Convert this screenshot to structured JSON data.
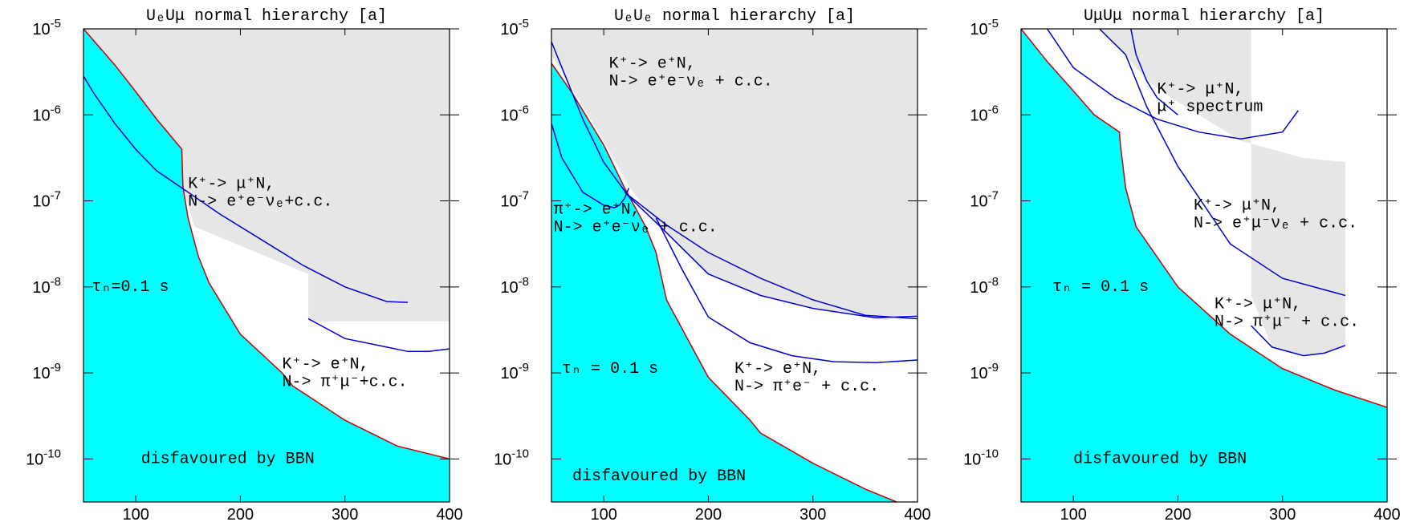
{
  "colors": {
    "bbn_fill": "#00ffff",
    "excluded_fill": "#e6e6e6",
    "bbn_boundary": "#d00000",
    "limit_curve": "#0000d0"
  },
  "chart_data": [
    {
      "type": "area",
      "title": "UₑUμ normal hierarchy [a]",
      "xlabel": "",
      "ylabel": "",
      "xlim": [
        50,
        400
      ],
      "ylim_log10": [
        -10.5,
        -5
      ],
      "yscale": "log",
      "x_ticks": [
        "100",
        "200",
        "300",
        "400"
      ],
      "y_ticks": [
        {
          "base": "10",
          "exp": "-5"
        },
        {
          "base": "10",
          "exp": "-6"
        },
        {
          "base": "10",
          "exp": "-7"
        },
        {
          "base": "10",
          "exp": "-8"
        },
        {
          "base": "10",
          "exp": "-9"
        },
        {
          "base": "10",
          "exp": "-10"
        }
      ],
      "grid": false,
      "regions": [
        {
          "name": "disfavoured by BBN",
          "x": [
            50,
            80,
            100,
            120,
            144,
            145,
            150,
            160,
            170,
            200,
            240,
            250,
            300,
            350,
            400
          ],
          "y_log10": [
            -5,
            -5.42,
            -5.73,
            -6.05,
            -6.4,
            -6.83,
            -7.2,
            -7.65,
            -7.95,
            -8.55,
            -9.0,
            -9.15,
            -9.55,
            -9.85,
            -10.0
          ]
        }
      ],
      "excluded_region": {
        "name": "excluded",
        "upper_log10": -5,
        "lower": [
          {
            "x": 50,
            "y_log10": -5
          },
          {
            "x": 144,
            "y_log10": -6.4
          },
          {
            "x": 145,
            "y_log10": -6.83
          },
          {
            "x": 156,
            "y_log10": -7.3
          },
          {
            "x": 265,
            "y_log10": -7.85
          },
          {
            "x": 265,
            "y_log10": -8.4
          },
          {
            "x": 400,
            "y_log10": -8.4
          }
        ]
      },
      "series": [
        {
          "x": [
            50,
            60,
            80,
            100,
            120,
            150,
            180,
            220,
            260,
            300,
            340,
            360
          ],
          "y_log10": [
            -5.55,
            -5.75,
            -6.1,
            -6.4,
            -6.65,
            -6.9,
            -7.15,
            -7.45,
            -7.75,
            -8.0,
            -8.17,
            -8.18
          ]
        },
        {
          "x": [
            265,
            300,
            340,
            360,
            380,
            400
          ],
          "y_log10": [
            -8.37,
            -8.6,
            -8.7,
            -8.75,
            -8.75,
            -8.72
          ]
        }
      ],
      "annotations": [
        {
          "x": 150,
          "y_log10": -6.85,
          "lines": [
            "K⁺-> μ⁺N,",
            "N-> e⁺e⁻νₑ+c.c."
          ]
        },
        {
          "x": 58,
          "y_log10": -8.05,
          "lines": [
            "τₙ=0.1 s"
          ]
        },
        {
          "x": 240,
          "y_log10": -8.95,
          "lines": [
            "K⁺-> e⁺N,",
            "N-> π⁺μ⁻+c.c."
          ]
        },
        {
          "x": 105,
          "y_log10": -10.05,
          "lines": [
            "disfavoured by BBN"
          ]
        }
      ]
    },
    {
      "type": "area",
      "title": "UₑUₑ normal hierarchy [a]",
      "xlabel": "",
      "ylabel": "",
      "xlim": [
        50,
        400
      ],
      "ylim_log10": [
        -10.5,
        -5
      ],
      "yscale": "log",
      "x_ticks": [
        "100",
        "200",
        "300",
        "400"
      ],
      "y_ticks": [
        {
          "base": "10",
          "exp": "-5"
        },
        {
          "base": "10",
          "exp": "-6"
        },
        {
          "base": "10",
          "exp": "-7"
        },
        {
          "base": "10",
          "exp": "-8"
        },
        {
          "base": "10",
          "exp": "-9"
        },
        {
          "base": "10",
          "exp": "-10"
        }
      ],
      "grid": false,
      "regions": [
        {
          "name": "disfavoured by BBN",
          "x": [
            50,
            70,
            100,
            120,
            140,
            150,
            160,
            200,
            240,
            250,
            300,
            350,
            380
          ],
          "y_log10": [
            -5.4,
            -5.75,
            -6.35,
            -6.85,
            -7.3,
            -7.6,
            -8.15,
            -9.05,
            -9.55,
            -9.7,
            -10.05,
            -10.35,
            -10.5
          ]
        }
      ],
      "excluded_region": {
        "name": "excluded",
        "upper_log10": -5,
        "lower": [
          {
            "x": 50,
            "y_log10": -5.3
          },
          {
            "x": 100,
            "y_log10": -6.3
          },
          {
            "x": 124,
            "y_log10": -6.83
          },
          {
            "x": 150,
            "y_log10": -7.25
          },
          {
            "x": 200,
            "y_log10": -7.85
          },
          {
            "x": 250,
            "y_log10": -8.1
          },
          {
            "x": 300,
            "y_log10": -8.25
          },
          {
            "x": 360,
            "y_log10": -8.35
          },
          {
            "x": 400,
            "y_log10": -8.32
          }
        ]
      },
      "series": [
        {
          "x": [
            50,
            60,
            70,
            80,
            100,
            124,
            150,
            200,
            250,
            300,
            360,
            400
          ],
          "y_log10": [
            -5.15,
            -5.45,
            -5.75,
            -6.05,
            -6.55,
            -6.95,
            -7.25,
            -7.85,
            -8.1,
            -8.25,
            -8.36,
            -8.34
          ]
        },
        {
          "x": [
            50,
            60,
            80,
            100,
            110,
            115,
            120,
            124
          ],
          "y_log10": [
            -6.1,
            -6.5,
            -6.9,
            -7.05,
            -7.08,
            -7.05,
            -6.97,
            -6.85
          ]
        },
        {
          "x": [
            120,
            160,
            200,
            250,
            300,
            350,
            400
          ],
          "y_log10": [
            -6.9,
            -7.28,
            -7.6,
            -7.9,
            -8.15,
            -8.33,
            -8.37
          ]
        },
        {
          "x": [
            150,
            175,
            200,
            240,
            280,
            320,
            360,
            400
          ],
          "y_log10": [
            -7.2,
            -7.8,
            -8.35,
            -8.65,
            -8.8,
            -8.87,
            -8.88,
            -8.85
          ]
        }
      ],
      "annotations": [
        {
          "x": 105,
          "y_log10": -5.45,
          "lines": [
            "K⁺-> e⁺N,",
            "N-> e⁺e⁻νₑ + c.c."
          ]
        },
        {
          "x": 52,
          "y_log10": -7.15,
          "lines": [
            "π⁺-> e⁺N,",
            "N-> e⁺e⁻νₑ + c.c."
          ]
        },
        {
          "x": 60,
          "y_log10": -9.0,
          "lines": [
            "τₙ = 0.1 s"
          ]
        },
        {
          "x": 225,
          "y_log10": -9.0,
          "lines": [
            "K⁺-> e⁺N,",
            "N-> π⁺e⁻ + c.c."
          ]
        },
        {
          "x": 70,
          "y_log10": -10.25,
          "lines": [
            "disfavoured by BBN"
          ]
        }
      ]
    },
    {
      "type": "area",
      "title": "UμUμ normal hierarchy [a]",
      "xlabel": "",
      "ylabel": "",
      "xlim": [
        50,
        400
      ],
      "ylim_log10": [
        -10.5,
        -5
      ],
      "yscale": "log",
      "x_ticks": [
        "100",
        "200",
        "300",
        "400"
      ],
      "y_ticks": [
        {
          "base": "10",
          "exp": "-5"
        },
        {
          "base": "10",
          "exp": "-6"
        },
        {
          "base": "10",
          "exp": "-7"
        },
        {
          "base": "10",
          "exp": "-8"
        },
        {
          "base": "10",
          "exp": "-9"
        },
        {
          "base": "10",
          "exp": "-10"
        }
      ],
      "grid": false,
      "regions": [
        {
          "name": "disfavoured by BBN",
          "x": [
            50,
            75,
            100,
            120,
            144,
            145,
            150,
            160,
            200,
            250,
            300,
            350,
            400
          ],
          "y_log10": [
            -5,
            -5.38,
            -5.72,
            -6.0,
            -6.2,
            -6.35,
            -6.85,
            -7.3,
            -8.0,
            -8.55,
            -8.95,
            -9.2,
            -9.4
          ]
        }
      ],
      "excluded_region": {
        "name": "excluded",
        "upper_log10": -5,
        "lower": [
          {
            "x": 125,
            "y_log10": -5
          },
          {
            "x": 150,
            "y_log10": -5.3
          },
          {
            "x": 170,
            "y_log10": -5.6
          },
          {
            "x": 200,
            "y_log10": -5.85
          },
          {
            "x": 260,
            "y_log10": -6.3
          },
          {
            "x": 320,
            "y_log10": -6.5
          },
          {
            "x": 360,
            "y_log10": -6.55
          },
          {
            "x": 360,
            "y_log10": -8.7
          },
          {
            "x": 340,
            "y_log10": -8.77
          },
          {
            "x": 320,
            "y_log10": -8.8
          },
          {
            "x": 290,
            "y_log10": -8.7
          },
          {
            "x": 270,
            "y_log10": -8.1
          }
        ]
      },
      "series": [
        {
          "x": [
            75,
            100,
            140,
            180,
            220,
            260,
            300,
            315
          ],
          "y_log10": [
            -5,
            -5.45,
            -5.8,
            -6.05,
            -6.2,
            -6.28,
            -6.2,
            -5.95
          ]
        },
        {
          "x": [
            125,
            150,
            170,
            200,
            250,
            300,
            360
          ],
          "y_log10": [
            -5,
            -5.3,
            -5.9,
            -6.6,
            -7.5,
            -7.9,
            -8.1
          ]
        },
        {
          "x": [
            155,
            160,
            170,
            180,
            200
          ],
          "y_log10": [
            -5,
            -5.3,
            -5.6,
            -5.8,
            -6.0
          ]
        },
        {
          "x": [
            270,
            290,
            320,
            340,
            360
          ],
          "y_log10": [
            -8.45,
            -8.7,
            -8.8,
            -8.77,
            -8.68
          ]
        }
      ],
      "annotations": [
        {
          "x": 180,
          "y_log10": -5.75,
          "lines": [
            "K⁺-> μ⁺N,",
            "μ⁺ spectrum"
          ]
        },
        {
          "x": 215,
          "y_log10": -7.1,
          "lines": [
            "K⁺-> μ⁺N,",
            "N-> e⁺μ⁻νₑ + c.c."
          ]
        },
        {
          "x": 80,
          "y_log10": -8.05,
          "lines": [
            "τₙ = 0.1 s"
          ]
        },
        {
          "x": 235,
          "y_log10": -8.25,
          "lines": [
            "K⁺-> μ⁺N,",
            "N-> π⁺μ⁻ + c.c."
          ]
        },
        {
          "x": 100,
          "y_log10": -10.05,
          "lines": [
            "disfavoured by BBN"
          ]
        }
      ]
    }
  ]
}
